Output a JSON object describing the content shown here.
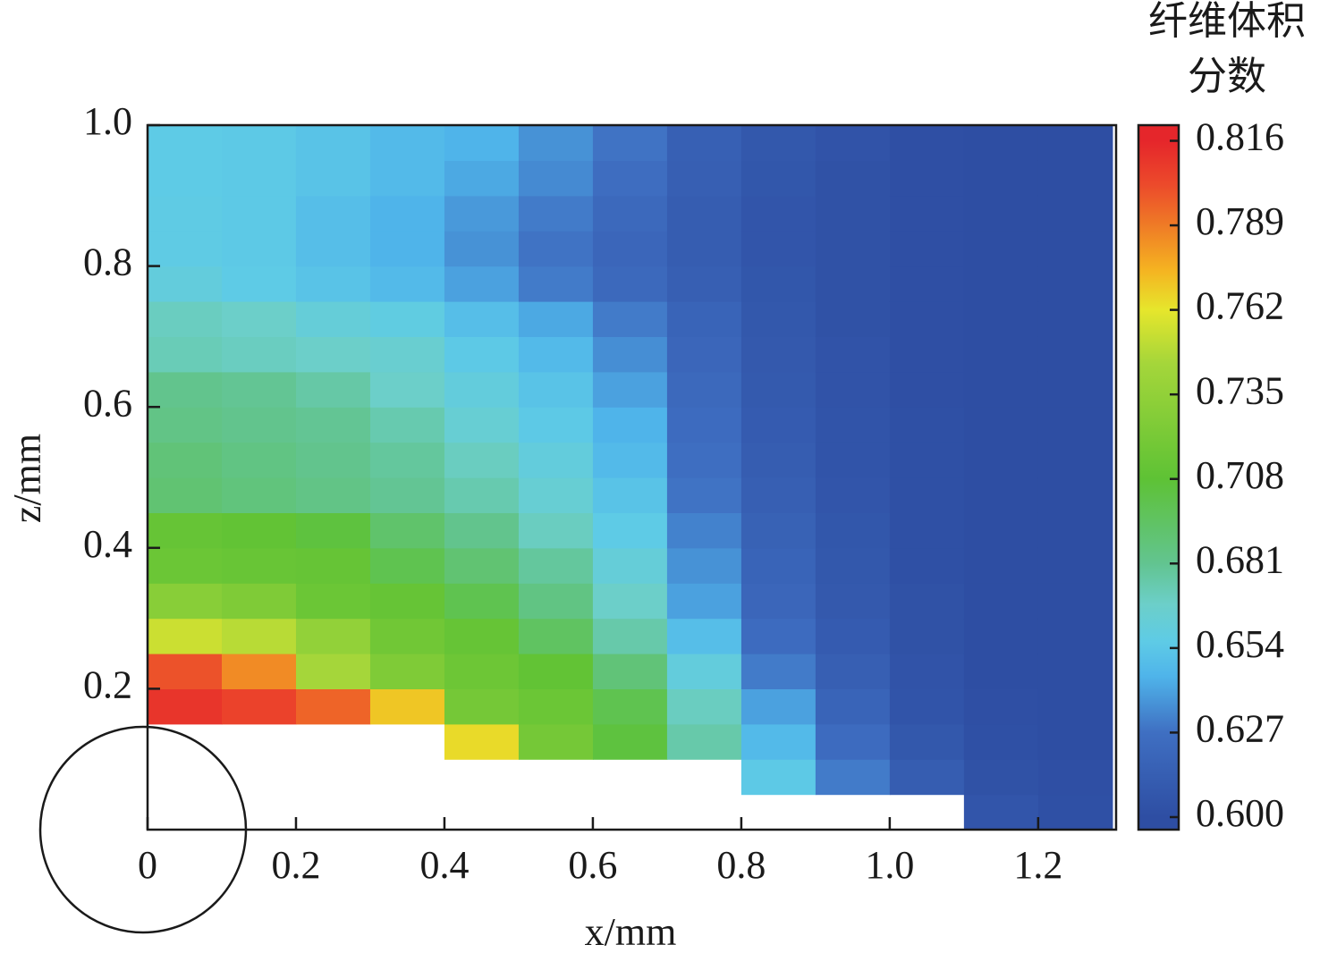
{
  "chart_data": {
    "type": "heatmap",
    "x_label": "x/mm",
    "y_label": "z/mm",
    "colorbar_title": [
      "纤维体积",
      "分数"
    ],
    "x": [
      0.05,
      0.15,
      0.25,
      0.35,
      0.45,
      0.55,
      0.65,
      0.75,
      0.85,
      0.95,
      1.05,
      1.15,
      1.25
    ],
    "y": [
      0.025,
      0.075,
      0.125,
      0.175,
      0.225,
      0.275,
      0.325,
      0.375,
      0.425,
      0.475,
      0.525,
      0.575,
      0.625,
      0.675,
      0.725,
      0.775,
      0.825,
      0.875,
      0.925,
      0.975
    ],
    "values": [
      [
        null,
        null,
        null,
        0.81,
        0.8,
        0.755,
        0.73,
        0.715,
        0.712,
        0.69,
        0.688,
        0.684,
        0.682,
        0.672,
        0.67,
        0.66,
        0.657,
        0.657,
        0.656,
        0.656
      ],
      [
        null,
        null,
        null,
        0.805,
        0.785,
        0.75,
        0.725,
        0.713,
        0.71,
        0.687,
        0.685,
        0.682,
        0.68,
        0.67,
        0.668,
        0.656,
        0.655,
        0.655,
        0.655,
        0.655
      ],
      [
        null,
        null,
        null,
        0.795,
        0.745,
        0.735,
        0.715,
        0.712,
        0.705,
        0.684,
        0.682,
        0.68,
        0.676,
        0.668,
        0.662,
        0.652,
        0.65,
        0.65,
        0.652,
        0.652
      ],
      [
        null,
        null,
        null,
        0.77,
        0.725,
        0.718,
        0.712,
        0.7,
        0.692,
        0.68,
        0.678,
        0.674,
        0.668,
        0.665,
        0.658,
        0.648,
        0.645,
        0.645,
        0.648,
        0.648
      ],
      [
        null,
        null,
        0.765,
        0.72,
        0.716,
        0.712,
        0.7,
        0.69,
        0.682,
        0.674,
        0.67,
        0.664,
        0.66,
        0.655,
        0.65,
        0.64,
        0.636,
        0.638,
        0.642,
        0.645
      ],
      [
        null,
        null,
        0.72,
        0.715,
        0.71,
        0.695,
        0.685,
        0.678,
        0.67,
        0.664,
        0.66,
        0.655,
        0.652,
        0.648,
        0.642,
        0.63,
        0.628,
        0.63,
        0.634,
        0.636
      ],
      [
        null,
        null,
        0.705,
        0.7,
        0.688,
        0.675,
        0.668,
        0.662,
        0.656,
        0.652,
        0.648,
        0.645,
        0.64,
        0.635,
        0.63,
        0.622,
        0.62,
        0.622,
        0.625,
        0.628
      ],
      [
        null,
        null,
        0.675,
        0.67,
        0.66,
        0.65,
        0.64,
        0.636,
        0.632,
        0.628,
        0.626,
        0.624,
        0.622,
        0.62,
        0.618,
        0.614,
        0.612,
        0.612,
        0.614,
        0.615
      ],
      [
        null,
        0.655,
        0.648,
        0.64,
        0.63,
        0.624,
        0.62,
        0.618,
        0.616,
        0.614,
        0.612,
        0.611,
        0.61,
        0.609,
        0.608,
        0.607,
        0.606,
        0.606,
        0.607,
        0.608
      ],
      [
        null,
        0.63,
        0.624,
        0.618,
        0.614,
        0.611,
        0.609,
        0.608,
        0.607,
        0.606,
        0.605,
        0.605,
        0.604,
        0.604,
        0.603,
        0.603,
        0.603,
        0.603,
        0.603,
        0.604
      ],
      [
        null,
        0.612,
        0.608,
        0.605,
        0.604,
        0.603,
        0.603,
        0.602,
        0.602,
        0.602,
        0.602,
        0.602,
        0.601,
        0.601,
        0.601,
        0.601,
        0.601,
        0.601,
        0.601,
        0.601
      ],
      [
        0.606,
        0.603,
        0.602,
        0.601,
        0.6,
        0.6,
        0.6,
        0.6,
        0.6,
        0.6,
        0.6,
        0.6,
        0.6,
        0.6,
        0.6,
        0.6,
        0.6,
        0.6,
        0.6,
        0.6
      ],
      [
        0.602,
        0.601,
        0.6,
        0.6,
        0.6,
        0.6,
        0.6,
        0.6,
        0.6,
        0.6,
        0.6,
        0.6,
        0.6,
        0.6,
        0.6,
        0.6,
        0.6,
        0.6,
        0.6,
        0.6
      ]
    ],
    "xlim": [
      0,
      1.305
    ],
    "ylim": [
      0,
      1
    ],
    "xticks": [
      0,
      0.2,
      0.4,
      0.6,
      0.8,
      {
        "value": 1,
        "label": "1.0"
      },
      1.2
    ],
    "yticks": [
      0.2,
      0.4,
      0.6,
      0.8,
      {
        "value": 1,
        "label": "1.0"
      }
    ],
    "clim": [
      0.596,
      0.821
    ],
    "cticks": [
      {
        "value": 0.6,
        "label": "0.600"
      },
      0.627,
      0.654,
      0.681,
      0.708,
      0.735,
      0.762,
      0.789,
      0.816
    ],
    "colorscale": [
      [
        0.6,
        "#2e4ea3"
      ],
      [
        0.627,
        "#3f6fc2"
      ],
      [
        0.645,
        "#4fb4ea"
      ],
      [
        0.656,
        "#5ecbe6"
      ],
      [
        0.668,
        "#6ccfc9"
      ],
      [
        0.681,
        "#62c490"
      ],
      [
        0.708,
        "#5ec235"
      ],
      [
        0.745,
        "#a5d63a"
      ],
      [
        0.762,
        "#e6e62c"
      ],
      [
        0.775,
        "#f5b221"
      ],
      [
        0.789,
        "#ef7b26"
      ],
      [
        0.802,
        "#ec4a2b"
      ],
      [
        0.816,
        "#e5262b"
      ]
    ]
  }
}
